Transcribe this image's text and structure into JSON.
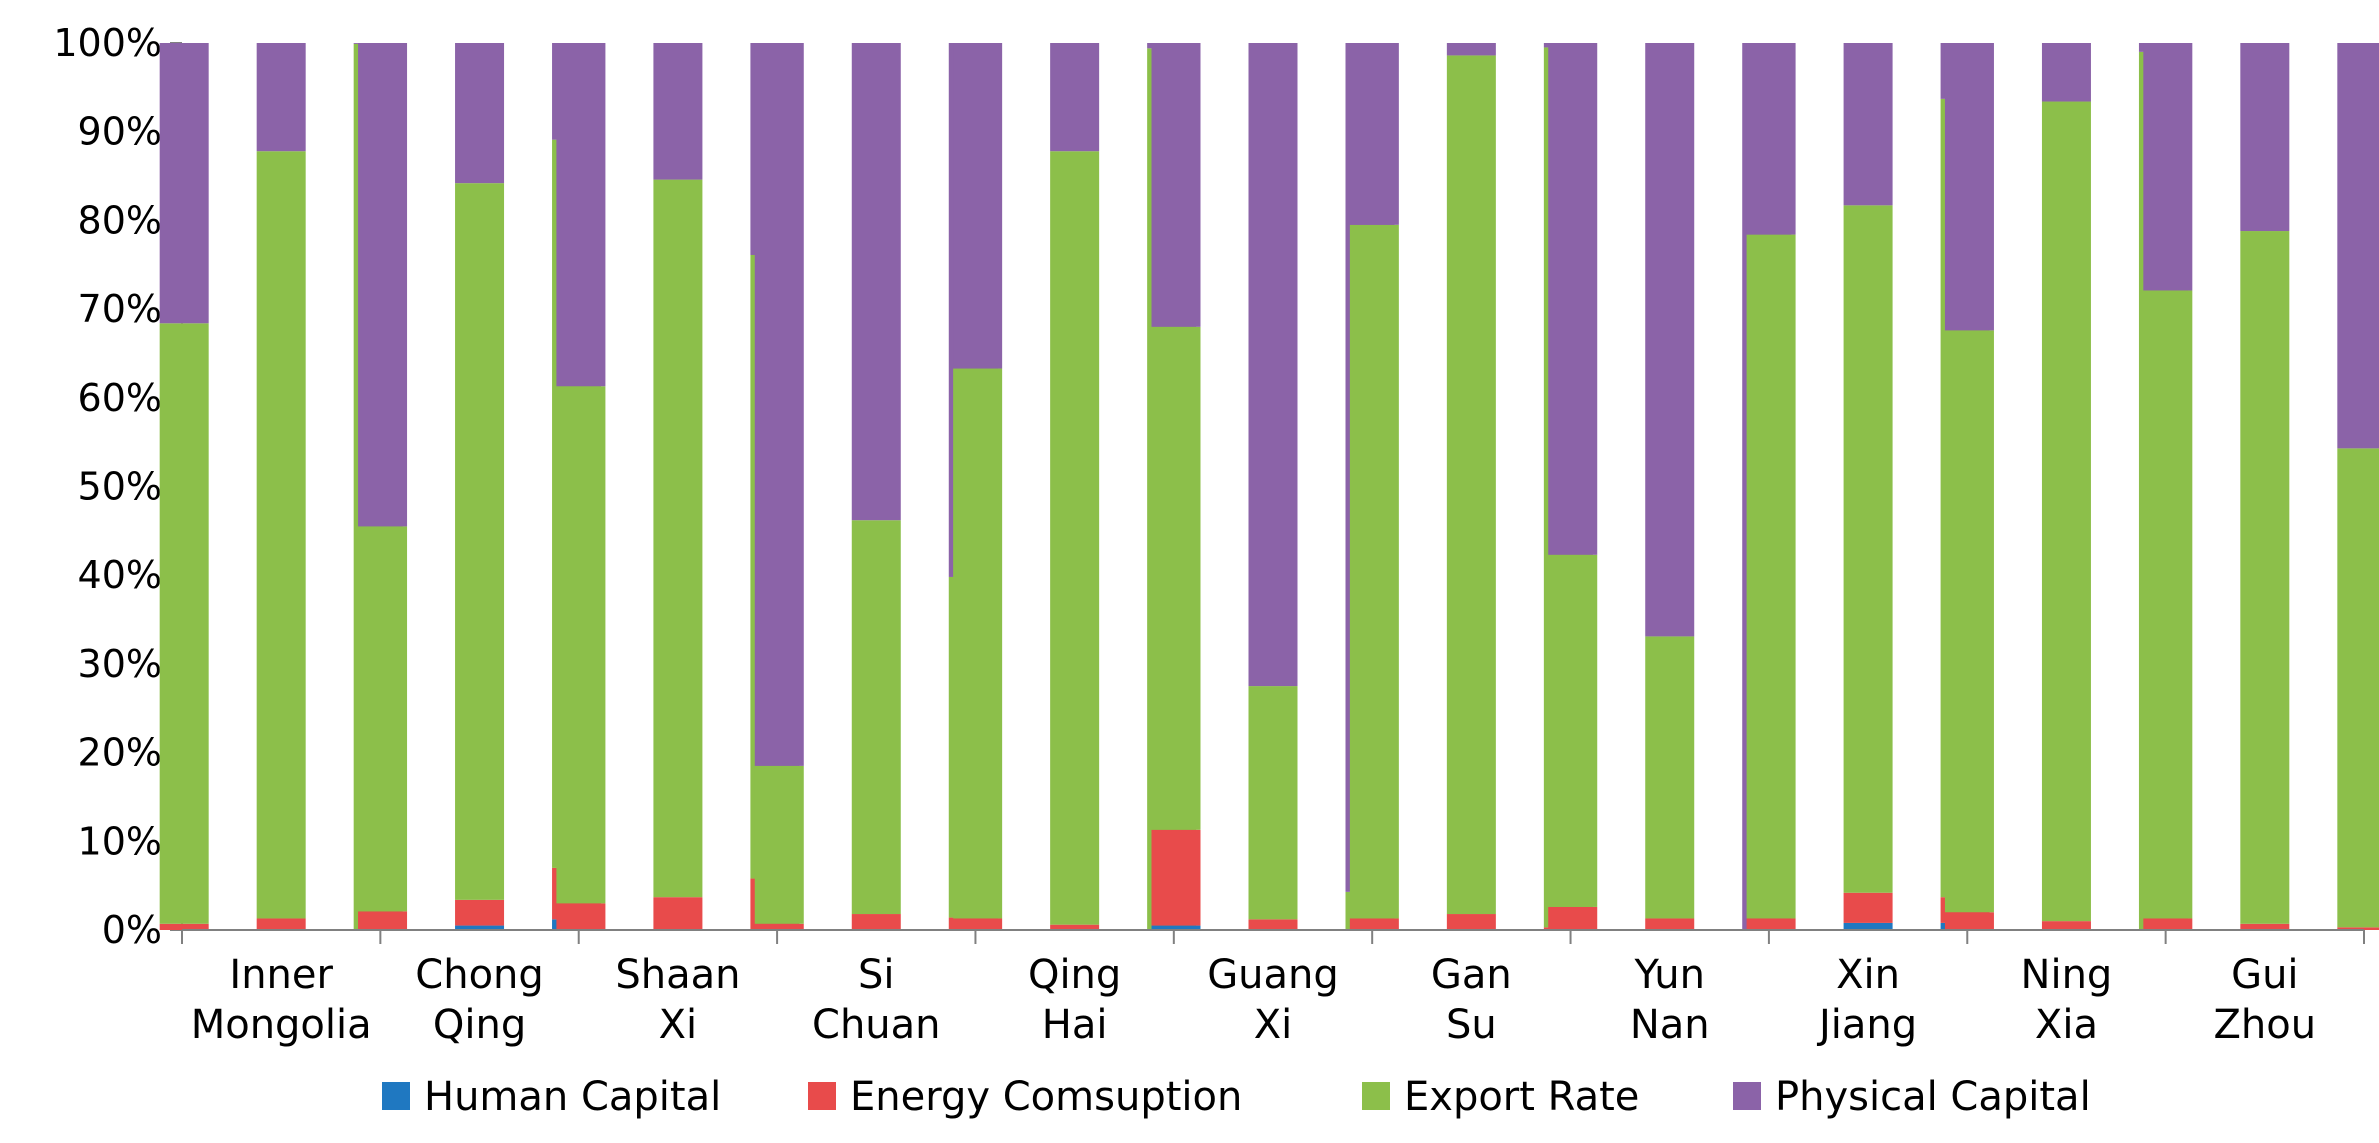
{
  "chart_data": {
    "type": "bar",
    "stacked": "percent",
    "title": "",
    "xlabel": "",
    "ylabel": "",
    "ylim": [
      0,
      100
    ],
    "yticks": [
      "0%",
      "10%",
      "20%",
      "30%",
      "40%",
      "50%",
      "60%",
      "70%",
      "80%",
      "90%",
      "100%"
    ],
    "grid": false,
    "legend_position": "bottom",
    "groups": [
      {
        "label": [
          "Inner",
          "Mongolia"
        ]
      },
      {
        "label": [
          "Chong",
          "Qing"
        ]
      },
      {
        "label": [
          "Shaan",
          "Xi"
        ]
      },
      {
        "label": [
          "Si",
          "Chuan"
        ]
      },
      {
        "label": [
          "Qing",
          "Hai"
        ]
      },
      {
        "label": [
          "Guang",
          "Xi"
        ]
      },
      {
        "label": [
          "Gan",
          "Su"
        ]
      },
      {
        "label": [
          "Yun",
          "Nan"
        ]
      },
      {
        "label": [
          "Xin",
          "Jiang"
        ]
      },
      {
        "label": [
          "Ning",
          "Xia"
        ]
      },
      {
        "label": [
          "Gui",
          "Zhou"
        ]
      }
    ],
    "bars_per_group": 3,
    "series": [
      {
        "name": "Human Capital",
        "color": "#1F78C1",
        "values": [
          0,
          0,
          0,
          0,
          0.5,
          1.2,
          0,
          0,
          0,
          0,
          0,
          0,
          0,
          0,
          0,
          0.5,
          0,
          0,
          0,
          0,
          0,
          0,
          0,
          0,
          0,
          0.8,
          0.8,
          0,
          0,
          0,
          0,
          0,
          0
        ]
      },
      {
        "name": "Energy Comsuption",
        "color": "#E84B4B",
        "values": [
          0.7,
          1.3,
          0,
          2.1,
          2.9,
          5.8,
          3.0,
          3.7,
          5.8,
          0.7,
          1.8,
          1.4,
          1.3,
          0.6,
          0,
          10.8,
          1.2,
          0,
          1.3,
          1.8,
          0.3,
          2.6,
          1.3,
          0,
          1.3,
          3.4,
          2.9,
          2.0,
          1.0,
          0,
          1.3,
          0.7,
          0.3
        ]
      },
      {
        "name": "Export Rate",
        "color": "#8CBF4A",
        "values": [
          67.7,
          86.5,
          99.9,
          43.4,
          80.8,
          82.1,
          58.3,
          80.9,
          70.3,
          17.8,
          44.4,
          38.4,
          62.0,
          87.2,
          99.4,
          56.7,
          26.3,
          4.3,
          78.2,
          96.8,
          99.2,
          39.7,
          31.8,
          0,
          77.1,
          77.5,
          90.0,
          65.6,
          92.4,
          99.0,
          70.8,
          78.1,
          54.0
        ]
      },
      {
        "name": "Physical Capital",
        "color": "#8B63A8",
        "values": [
          31.6,
          12.2,
          0.1,
          54.5,
          15.8,
          10.9,
          38.7,
          15.4,
          23.9,
          81.5,
          53.8,
          60.2,
          36.7,
          12.2,
          0.6,
          32.0,
          72.5,
          95.7,
          20.5,
          1.4,
          0.5,
          57.7,
          66.9,
          100,
          21.6,
          18.3,
          6.3,
          32.4,
          6.6,
          1.0,
          27.9,
          21.2,
          45.7
        ]
      }
    ]
  }
}
